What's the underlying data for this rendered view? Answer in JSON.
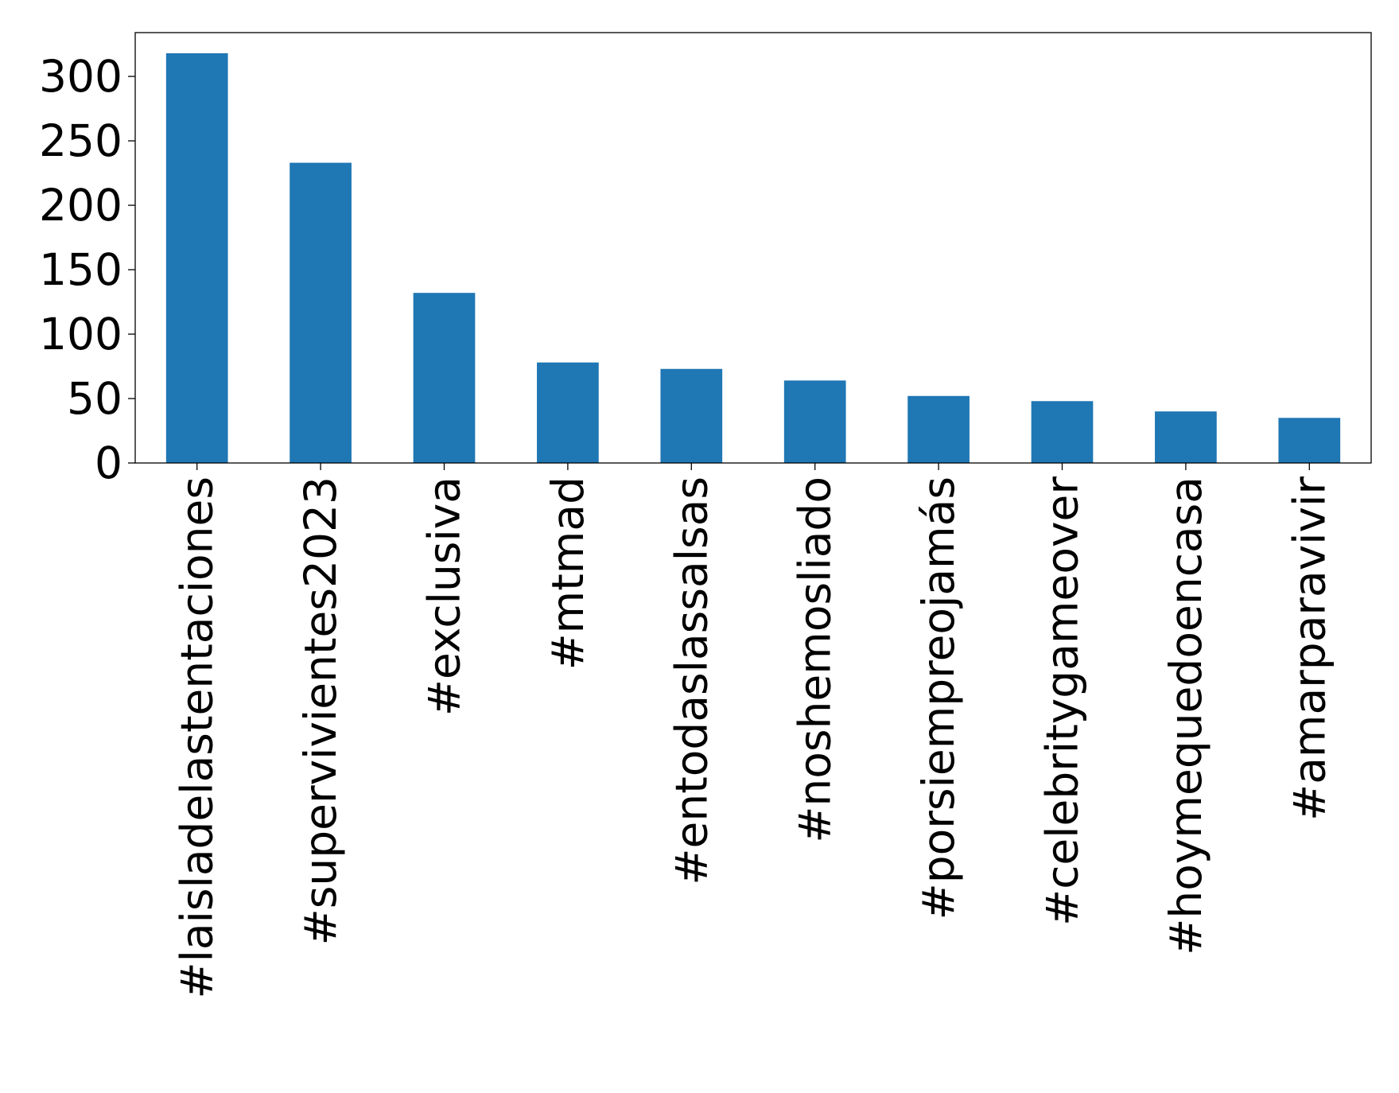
{
  "chart_data": {
    "type": "bar",
    "title": "",
    "xlabel": "",
    "ylabel": "",
    "categories": [
      "#laisladelastentaciones",
      "#supervivientes2023",
      "#exclusiva",
      "#mtmad",
      "#entodaslassalsas",
      "#noshemosliado",
      "#porsiempreojamás",
      "#celebritygameover",
      "#hoymequedoencasa",
      "#amarparavivir"
    ],
    "values": [
      318,
      233,
      132,
      78,
      73,
      64,
      52,
      48,
      40,
      35
    ],
    "ylim": [
      0,
      334
    ],
    "yticks": [
      0,
      50,
      100,
      150,
      200,
      250,
      300
    ],
    "bar_color": "#1f77b4",
    "grid": false,
    "legend": "none"
  }
}
